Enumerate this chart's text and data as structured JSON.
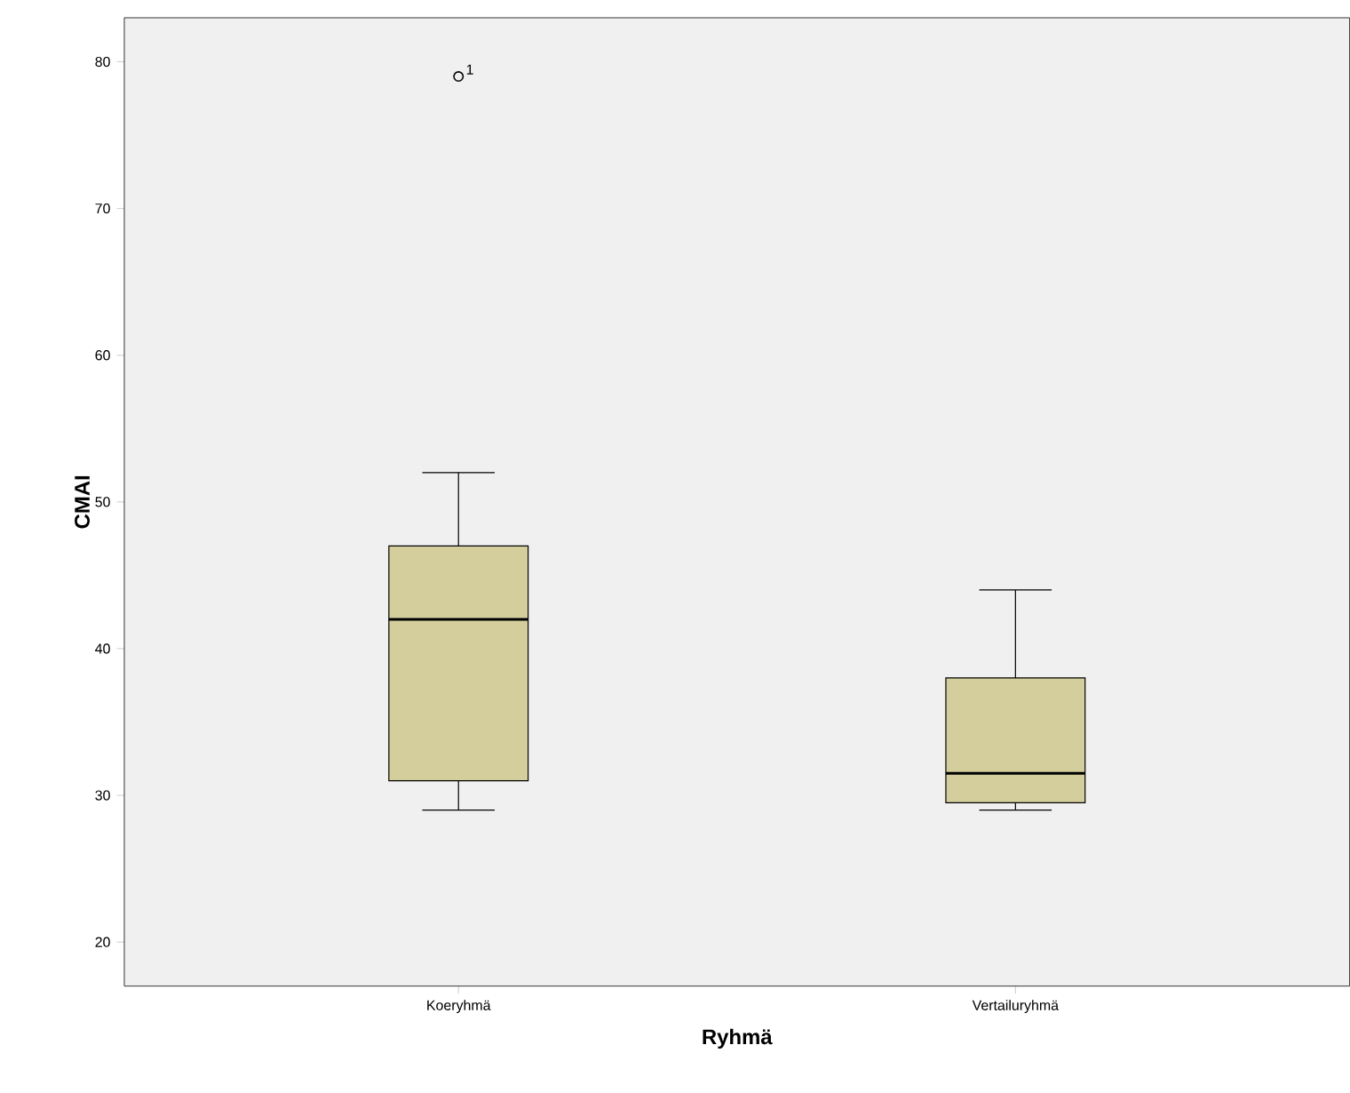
{
  "chart_data": {
    "type": "box",
    "xlabel": "Ryhmä",
    "ylabel": "CMAI",
    "categories": [
      "Koeryhmä",
      "Vertailuryhmä"
    ],
    "boxes": [
      {
        "low": 29,
        "q1": 31,
        "median": 42,
        "q3": 47,
        "high": 52,
        "outliers": [
          79
        ]
      },
      {
        "low": 29,
        "q1": 29.5,
        "median": 31.5,
        "q3": 38,
        "high": 44
      }
    ],
    "color": "#d3ce9b",
    "marker": "circle",
    "annotations": [
      "1"
    ],
    "ylim": [
      17,
      83
    ],
    "yticks": [
      20,
      30,
      40,
      50,
      60,
      70,
      80
    ],
    "grid": false
  }
}
